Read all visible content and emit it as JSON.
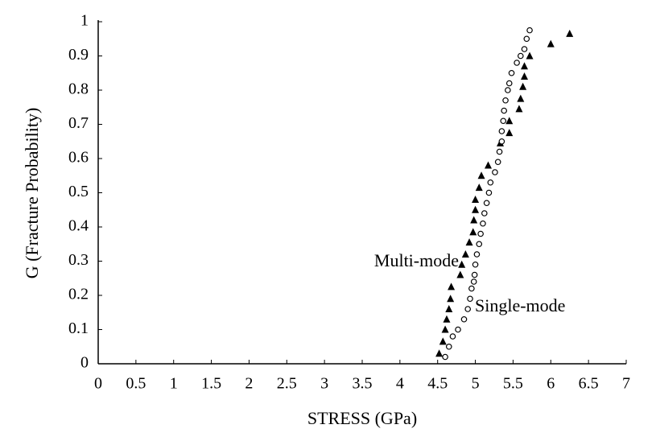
{
  "chart_data": {
    "type": "scatter",
    "xlabel": "STRESS (GPa)",
    "ylabel": "G (Fracture Probability)",
    "xlim": [
      0,
      7
    ],
    "ylim": [
      0,
      1
    ],
    "xticks": [
      0,
      0.5,
      1,
      1.5,
      2,
      2.5,
      3,
      3.5,
      4,
      4.5,
      5,
      5.5,
      6,
      6.5,
      7
    ],
    "yticks": [
      0,
      0.1,
      0.2,
      0.3,
      0.4,
      0.5,
      0.6,
      0.7,
      0.8,
      0.9,
      1
    ],
    "series": [
      {
        "name": "Multi-mode",
        "color": "#000000",
        "marker": "triangle",
        "x": [
          4.52,
          4.57,
          4.6,
          4.62,
          4.65,
          4.67,
          4.68,
          4.8,
          4.82,
          4.87,
          4.92,
          4.97,
          4.98,
          5.0,
          5.0,
          5.05,
          5.08,
          5.17,
          5.33,
          5.45,
          5.45,
          5.58,
          5.6,
          5.63,
          5.65,
          5.65,
          5.72,
          6.0,
          6.25
        ],
        "values": [
          0.03,
          0.065,
          0.1,
          0.13,
          0.16,
          0.19,
          0.225,
          0.26,
          0.29,
          0.32,
          0.355,
          0.385,
          0.42,
          0.45,
          0.48,
          0.515,
          0.55,
          0.58,
          0.645,
          0.675,
          0.71,
          0.745,
          0.775,
          0.81,
          0.84,
          0.87,
          0.9,
          0.935,
          0.965
        ]
      },
      {
        "name": "Single-mode",
        "color": "#000000",
        "marker": "circle",
        "x": [
          4.6,
          4.65,
          4.7,
          4.77,
          4.85,
          4.9,
          4.93,
          4.95,
          4.98,
          4.99,
          5.0,
          5.02,
          5.05,
          5.07,
          5.1,
          5.12,
          5.15,
          5.18,
          5.2,
          5.26,
          5.3,
          5.32,
          5.35,
          5.35,
          5.37,
          5.38,
          5.4,
          5.43,
          5.45,
          5.48,
          5.55,
          5.6,
          5.65,
          5.68,
          5.72
        ],
        "values": [
          0.02,
          0.05,
          0.08,
          0.1,
          0.13,
          0.16,
          0.19,
          0.22,
          0.24,
          0.26,
          0.29,
          0.32,
          0.35,
          0.38,
          0.41,
          0.44,
          0.47,
          0.5,
          0.53,
          0.56,
          0.59,
          0.62,
          0.65,
          0.68,
          0.71,
          0.74,
          0.77,
          0.8,
          0.82,
          0.85,
          0.88,
          0.9,
          0.92,
          0.95,
          0.975
        ]
      }
    ]
  }
}
